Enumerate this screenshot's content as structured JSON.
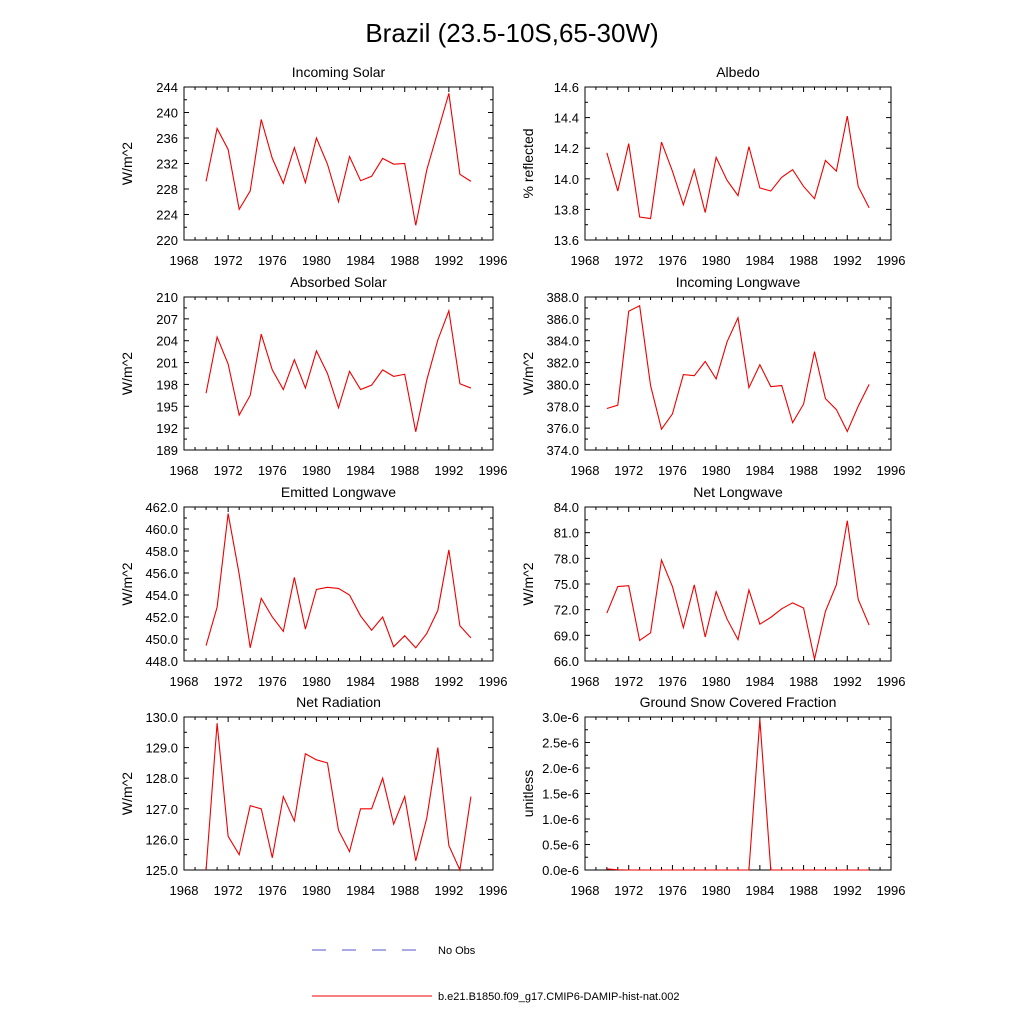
{
  "figure": {
    "title": "Brazil (23.5-10S,65-30W)",
    "legend": [
      {
        "label": "No Obs",
        "color": "#5555cc",
        "style": "dashed"
      },
      {
        "label": "b.e21.B1850.f09_g17.CMIP6-DAMIP-hist-nat.002",
        "color": "#ee0000",
        "style": "solid"
      }
    ]
  },
  "chart_data": [
    {
      "type": "line",
      "title": "Incoming Solar",
      "ylabel": "W/m^2",
      "xlim": [
        1968,
        1996
      ],
      "ylim": [
        220,
        244
      ],
      "xticks": [
        1968,
        1972,
        1976,
        1980,
        1984,
        1988,
        1992,
        1996
      ],
      "yticks": [
        "220",
        "224",
        "228",
        "232",
        "236",
        "240",
        "244"
      ],
      "x": [
        1970,
        1971,
        1972,
        1973,
        1974,
        1975,
        1976,
        1977,
        1978,
        1979,
        1980,
        1981,
        1982,
        1983,
        1984,
        1985,
        1986,
        1987,
        1988,
        1989,
        1990,
        1991,
        1992,
        1993,
        1994
      ],
      "values": [
        229.2,
        237.5,
        234.2,
        224.8,
        227.7,
        238.9,
        232.8,
        228.9,
        234.5,
        229.0,
        236.0,
        231.9,
        226.0,
        233.1,
        229.3,
        230.0,
        232.8,
        231.9,
        232.0,
        222.3,
        231.0,
        237.0,
        243.0,
        230.3,
        229.2
      ],
      "color": "#ee0000"
    },
    {
      "type": "line",
      "title": "Albedo",
      "ylabel": "% reflected",
      "xlim": [
        1968,
        1996
      ],
      "ylim": [
        13.6,
        14.6
      ],
      "xticks": [
        1968,
        1972,
        1976,
        1980,
        1984,
        1988,
        1992,
        1996
      ],
      "yticks": [
        "13.6",
        "13.8",
        "14.0",
        "14.2",
        "14.4",
        "14.6"
      ],
      "x": [
        1970,
        1971,
        1972,
        1973,
        1974,
        1975,
        1976,
        1977,
        1978,
        1979,
        1980,
        1981,
        1982,
        1983,
        1984,
        1985,
        1986,
        1987,
        1988,
        1989,
        1990,
        1991,
        1992,
        1993,
        1994
      ],
      "values": [
        14.17,
        13.92,
        14.23,
        13.75,
        13.74,
        14.24,
        14.05,
        13.83,
        14.06,
        13.78,
        14.14,
        13.99,
        13.89,
        14.21,
        13.94,
        13.92,
        14.01,
        14.06,
        13.95,
        13.87,
        14.12,
        14.05,
        14.41,
        13.95,
        13.81
      ],
      "color": "#ee0000"
    },
    {
      "type": "line",
      "title": "Absorbed Solar",
      "ylabel": "W/m^2",
      "xlim": [
        1968,
        1996
      ],
      "ylim": [
        189,
        210
      ],
      "xticks": [
        1968,
        1972,
        1976,
        1980,
        1984,
        1988,
        1992,
        1996
      ],
      "yticks": [
        "189",
        "192",
        "195",
        "198",
        "201",
        "204",
        "207",
        "210"
      ],
      "x": [
        1970,
        1971,
        1972,
        1973,
        1974,
        1975,
        1976,
        1977,
        1978,
        1979,
        1980,
        1981,
        1982,
        1983,
        1984,
        1985,
        1986,
        1987,
        1988,
        1989,
        1990,
        1991,
        1992,
        1993,
        1994
      ],
      "values": [
        196.8,
        204.5,
        200.8,
        193.8,
        196.5,
        204.9,
        200.0,
        197.3,
        201.4,
        197.5,
        202.6,
        199.5,
        194.8,
        199.8,
        197.3,
        197.9,
        200.0,
        199.1,
        199.4,
        191.5,
        198.6,
        204.1,
        208.1,
        198.1,
        197.5
      ],
      "color": "#ee0000"
    },
    {
      "type": "line",
      "title": "Incoming Longwave",
      "ylabel": "W/m^2",
      "xlim": [
        1968,
        1996
      ],
      "ylim": [
        374.0,
        388.0
      ],
      "xticks": [
        1968,
        1972,
        1976,
        1980,
        1984,
        1988,
        1992,
        1996
      ],
      "yticks": [
        "374.0",
        "376.0",
        "378.0",
        "380.0",
        "382.0",
        "384.0",
        "386.0",
        "388.0"
      ],
      "x": [
        1970,
        1971,
        1972,
        1973,
        1974,
        1975,
        1976,
        1977,
        1978,
        1979,
        1980,
        1981,
        1982,
        1983,
        1984,
        1985,
        1986,
        1987,
        1988,
        1989,
        1990,
        1991,
        1992,
        1993,
        1994
      ],
      "values": [
        377.8,
        378.1,
        386.7,
        387.2,
        379.9,
        375.9,
        377.3,
        380.9,
        380.8,
        382.1,
        380.5,
        383.9,
        386.1,
        379.7,
        381.8,
        379.8,
        379.9,
        376.5,
        378.2,
        383.0,
        378.7,
        377.7,
        375.7,
        378.0,
        380.0
      ],
      "color": "#ee0000"
    },
    {
      "type": "line",
      "title": "Emitted Longwave",
      "ylabel": "W/m^2",
      "xlim": [
        1968,
        1996
      ],
      "ylim": [
        448.0,
        462.0
      ],
      "xticks": [
        1968,
        1972,
        1976,
        1980,
        1984,
        1988,
        1992,
        1996
      ],
      "yticks": [
        "448.0",
        "450.0",
        "452.0",
        "454.0",
        "456.0",
        "458.0",
        "460.0",
        "462.0"
      ],
      "x": [
        1970,
        1971,
        1972,
        1973,
        1974,
        1975,
        1976,
        1977,
        1978,
        1979,
        1980,
        1981,
        1982,
        1983,
        1984,
        1985,
        1986,
        1987,
        1988,
        1989,
        1990,
        1991,
        1992,
        1993,
        1994
      ],
      "values": [
        449.4,
        452.9,
        461.4,
        455.9,
        449.2,
        453.7,
        452.0,
        450.7,
        455.6,
        450.9,
        454.5,
        454.7,
        454.6,
        454.0,
        452.1,
        450.8,
        452.0,
        449.3,
        450.3,
        449.2,
        450.5,
        452.6,
        458.1,
        451.2,
        450.1
      ],
      "color": "#ee0000"
    },
    {
      "type": "line",
      "title": "Net Longwave",
      "ylabel": "W/m^2",
      "xlim": [
        1968,
        1996
      ],
      "ylim": [
        66.0,
        84.0
      ],
      "xticks": [
        1968,
        1972,
        1976,
        1980,
        1984,
        1988,
        1992,
        1996
      ],
      "yticks": [
        "66.0",
        "69.0",
        "72.0",
        "75.0",
        "78.0",
        "81.0",
        "84.0"
      ],
      "x": [
        1970,
        1971,
        1972,
        1973,
        1974,
        1975,
        1976,
        1977,
        1978,
        1979,
        1980,
        1981,
        1982,
        1983,
        1984,
        1985,
        1986,
        1987,
        1988,
        1989,
        1990,
        1991,
        1992,
        1993,
        1994
      ],
      "values": [
        71.6,
        74.7,
        74.8,
        68.4,
        69.3,
        77.8,
        74.7,
        69.9,
        74.9,
        68.8,
        74.1,
        70.9,
        68.5,
        74.3,
        70.3,
        71.1,
        72.1,
        72.8,
        72.2,
        66.2,
        71.8,
        74.9,
        82.4,
        73.2,
        70.2
      ],
      "color": "#ee0000"
    },
    {
      "type": "line",
      "title": "Net Radiation",
      "ylabel": "W/m^2",
      "xlim": [
        1968,
        1996
      ],
      "ylim": [
        125.0,
        130.0
      ],
      "xticks": [
        1968,
        1972,
        1976,
        1980,
        1984,
        1988,
        1992,
        1996
      ],
      "yticks": [
        "125.0",
        "126.0",
        "127.0",
        "128.0",
        "129.0",
        "130.0"
      ],
      "x": [
        1970,
        1971,
        1972,
        1973,
        1974,
        1975,
        1976,
        1977,
        1978,
        1979,
        1980,
        1981,
        1982,
        1983,
        1984,
        1985,
        1986,
        1987,
        1988,
        1989,
        1990,
        1991,
        1992,
        1993,
        1994
      ],
      "values": [
        125.0,
        129.8,
        126.1,
        125.5,
        127.1,
        127.0,
        125.4,
        127.4,
        126.6,
        128.8,
        128.6,
        128.5,
        126.3,
        125.6,
        127.0,
        127.0,
        128.0,
        126.5,
        127.4,
        125.3,
        126.7,
        129.0,
        125.8,
        125.0,
        127.4
      ],
      "color": "#ee0000"
    },
    {
      "type": "line",
      "title": "Ground Snow Covered Fraction",
      "ylabel": "unitless",
      "xlim": [
        1968,
        1996
      ],
      "ylim": [
        0,
        3e-06
      ],
      "xticks": [
        1968,
        1972,
        1976,
        1980,
        1984,
        1988,
        1992,
        1996
      ],
      "yticks": [
        "0.0e-6",
        "0.5e-6",
        "1.0e-6",
        "1.5e-6",
        "2.0e-6",
        "2.5e-6",
        "3.0e-6"
      ],
      "x": [
        1970,
        1971,
        1972,
        1973,
        1974,
        1975,
        1976,
        1977,
        1978,
        1979,
        1980,
        1981,
        1982,
        1983,
        1984,
        1985,
        1986,
        1987,
        1988,
        1989,
        1990,
        1991,
        1992,
        1993,
        1994
      ],
      "values": [
        2e-08,
        5e-09,
        0,
        0,
        0,
        0,
        0,
        0,
        0,
        0,
        0,
        0,
        0,
        0,
        2.95e-06,
        0,
        0,
        0,
        0,
        0,
        0,
        0,
        0,
        0,
        0
      ],
      "color": "#ee0000"
    }
  ]
}
